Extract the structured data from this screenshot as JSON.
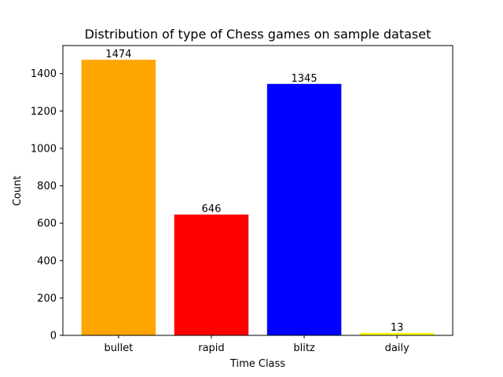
{
  "chart_data": {
    "type": "bar",
    "title": "Distribution of type of Chess games on sample dataset",
    "xlabel": "Time Class",
    "ylabel": "Count",
    "categories": [
      "bullet",
      "rapid",
      "blitz",
      "daily"
    ],
    "values": [
      1474,
      646,
      1345,
      13
    ],
    "value_labels": [
      "1474",
      "646",
      "1345",
      "13"
    ],
    "colors": [
      "#ffa500",
      "#ff0000",
      "#0000ff",
      "#ffff00"
    ],
    "ylim": [
      0,
      1550
    ],
    "yticks": [
      0,
      200,
      400,
      600,
      800,
      1000,
      1200,
      1400
    ],
    "grid": false,
    "legend": "none"
  }
}
